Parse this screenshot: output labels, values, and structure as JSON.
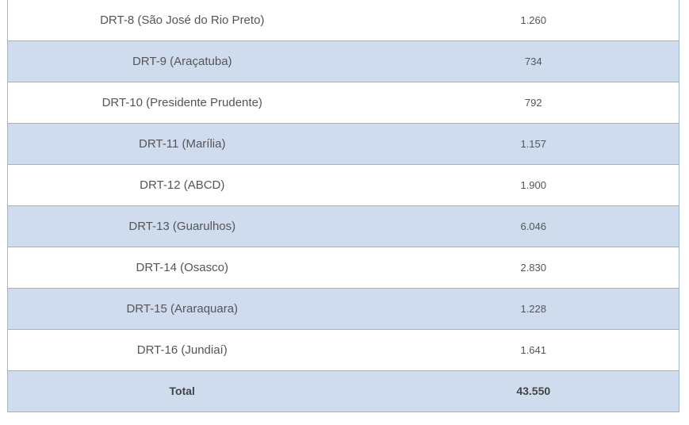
{
  "table": {
    "rows": [
      {
        "name": "DRT-8 (São José do Rio Preto)",
        "value": "1.260"
      },
      {
        "name": "DRT-9 (Araçatuba)",
        "value": "734"
      },
      {
        "name": "DRT-10 (Presidente Prudente)",
        "value": "792"
      },
      {
        "name": "DRT-11 (Marília)",
        "value": "1.157"
      },
      {
        "name": "DRT-12 (ABCD)",
        "value": "1.900"
      },
      {
        "name": "DRT-13 (Guarulhos)",
        "value": "6.046"
      },
      {
        "name": "DRT-14 (Osasco)",
        "value": "2.830"
      },
      {
        "name": "DRT-15 (Araraquara)",
        "value": "1.228"
      },
      {
        "name": "DRT-16 (Jundiaí)",
        "value": "1.641"
      }
    ],
    "total": {
      "label": "Total",
      "value": "43.550"
    }
  },
  "colors": {
    "stripe": "#cfdcee",
    "border": "#9fb6cf"
  }
}
